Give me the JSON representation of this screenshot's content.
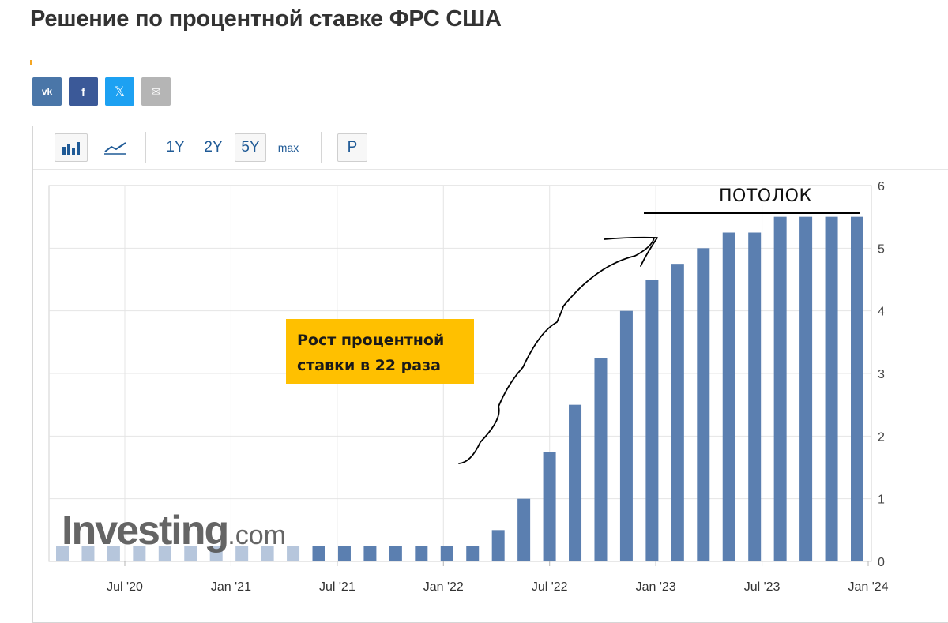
{
  "page": {
    "title": "Решение по процентной ставке ФРС США"
  },
  "share": {
    "vk": "vk",
    "facebook": "f",
    "x": "𝕏",
    "email": "✉",
    "icons": [
      "vk-icon",
      "facebook-icon",
      "x-icon",
      "email-icon"
    ]
  },
  "toolbar": {
    "bar_chart_icon": "bar-chart-icon",
    "line_chart_icon": "line-chart-icon",
    "ranges": [
      "1Y",
      "2Y",
      "5Y",
      "max"
    ],
    "selected_range": "5Y",
    "p_button": "P"
  },
  "annotations": {
    "growth_line1": "Рост процентной",
    "growth_line2": "ставки в 22 раза",
    "ceiling": "ПОТОЛОК"
  },
  "watermark": {
    "brand": "Investing",
    "tld": ".com"
  },
  "chart_data": {
    "type": "bar",
    "x_tick_labels": [
      "Jul '20",
      "Jan '21",
      "Jul '21",
      "Jan '22",
      "Jul '22",
      "Jan '23",
      "Jul '23",
      "Jan '24"
    ],
    "y_tick_labels": [
      "0",
      "1",
      "2",
      "3",
      "4",
      "5",
      "6"
    ],
    "ylim": [
      0,
      6
    ],
    "y_axis_side": "right",
    "grid": true,
    "bar_color": "#5b7fb0",
    "faded_bar_color": "#b6c6dc",
    "faded_count": 10,
    "values": [
      0.25,
      0.25,
      0.25,
      0.25,
      0.25,
      0.25,
      0.25,
      0.25,
      0.25,
      0.25,
      0.25,
      0.25,
      0.25,
      0.25,
      0.25,
      0.25,
      0.25,
      0.5,
      1.0,
      1.75,
      2.5,
      3.25,
      4.0,
      4.5,
      4.75,
      5.0,
      5.25,
      5.25,
      5.5,
      5.5,
      5.5,
      5.5
    ]
  }
}
